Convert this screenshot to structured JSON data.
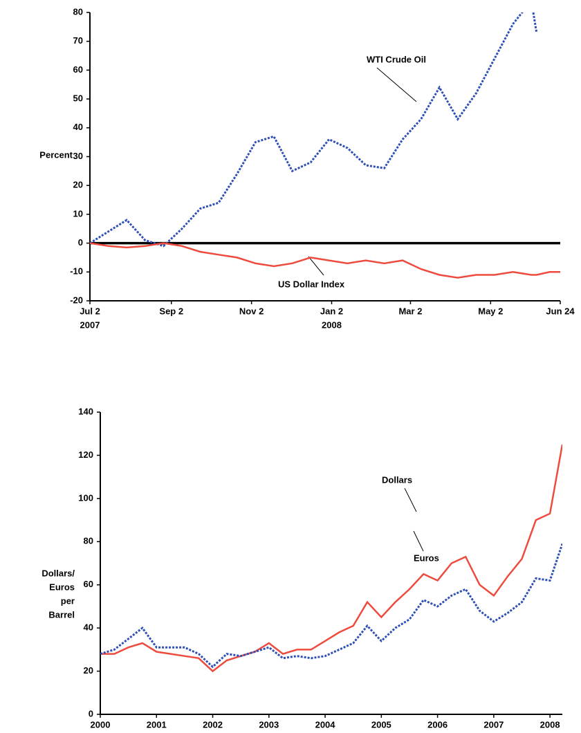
{
  "chart_data": [
    {
      "type": "line",
      "ylabel": [
        "Percent"
      ],
      "x": [
        "2007-07-02",
        "2007-07-16",
        "2007-07-30",
        "2007-08-13",
        "2007-08-27",
        "2007-09-10",
        "2007-09-24",
        "2007-10-08",
        "2007-10-22",
        "2007-11-05",
        "2007-11-19",
        "2007-12-03",
        "2007-12-17",
        "2007-12-31",
        "2008-01-14",
        "2008-01-28",
        "2008-02-11",
        "2008-02-25",
        "2008-03-10",
        "2008-03-24",
        "2008-04-07",
        "2008-04-21",
        "2008-05-05",
        "2008-05-19",
        "2008-06-02",
        "2008-06-06",
        "2008-06-16",
        "2008-06-24"
      ],
      "series": [
        {
          "name": "WTI Crude Oil",
          "color": "#2e4fb5",
          "dash": true,
          "values": [
            0,
            4,
            8,
            1,
            -1,
            5,
            12,
            14,
            24,
            35,
            37,
            25,
            28,
            36,
            33,
            27,
            26,
            36,
            43,
            54,
            43,
            52,
            64,
            76,
            84,
            73,
            null,
            null
          ]
        },
        {
          "name": "US Dollar Index",
          "color": "#ee4b3e",
          "dash": false,
          "values": [
            0,
            -1,
            -1.5,
            -1,
            0,
            -1,
            -3,
            -4,
            -5,
            -7,
            -8,
            -7,
            -5,
            -6,
            -7,
            -6,
            -7,
            -6,
            -9,
            -11,
            -12,
            -11,
            -11,
            -10,
            -11,
            -11,
            -10,
            -10
          ]
        }
      ],
      "xlim": [
        "2007-07-02",
        "2008-06-24"
      ],
      "xticks": [
        {
          "value": "2007-07-02",
          "label": "Jul 2"
        },
        {
          "value": "2007-09-02",
          "label": "Sep 2"
        },
        {
          "value": "2007-11-02",
          "label": "Nov 2"
        },
        {
          "value": "2008-01-02",
          "label": "Jan 2"
        },
        {
          "value": "2008-03-02",
          "label": "Mar 2"
        },
        {
          "value": "2008-05-02",
          "label": "May 2"
        },
        {
          "value": "2008-06-24",
          "label": "Jun 24"
        }
      ],
      "year_labels": [
        {
          "value": "2007-07-02",
          "label": "2007"
        },
        {
          "value": "2008-01-02",
          "label": "2008"
        }
      ],
      "ylim": [
        -20,
        80
      ],
      "yticks": [
        -20,
        -10,
        0,
        10,
        20,
        30,
        40,
        50,
        60,
        70,
        80
      ],
      "zero_line": true
    },
    {
      "type": "line",
      "ylabel": [
        "Dollars/",
        "Euros",
        "per",
        "Barrel"
      ],
      "x": [
        2000,
        2000.25,
        2000.5,
        2000.75,
        2001,
        2001.25,
        2001.5,
        2001.75,
        2002,
        2002.25,
        2002.5,
        2002.75,
        2003,
        2003.25,
        2003.5,
        2003.75,
        2004,
        2004.25,
        2004.5,
        2004.75,
        2005,
        2005.25,
        2005.5,
        2005.75,
        2006,
        2006.25,
        2006.5,
        2006.75,
        2007,
        2007.25,
        2007.5,
        2007.75,
        2008,
        2008.22
      ],
      "series": [
        {
          "name": "Dollars",
          "color": "#ee4b3e",
          "dash": false,
          "values": [
            28,
            28,
            31,
            33,
            29,
            28,
            27,
            26,
            20,
            25,
            27,
            29,
            33,
            28,
            30,
            30,
            34,
            38,
            41,
            52,
            45,
            52,
            58,
            65,
            62,
            70,
            73,
            60,
            55,
            64,
            72,
            90,
            93,
            125
          ]
        },
        {
          "name": "Euros",
          "color": "#2e4fb5",
          "dash": true,
          "values": [
            28,
            30,
            35,
            40,
            31,
            31,
            31,
            28,
            22,
            28,
            27,
            29,
            31,
            26,
            27,
            26,
            27,
            30,
            33,
            41,
            34,
            40,
            44,
            53,
            50,
            55,
            58,
            48,
            43,
            47,
            52,
            63,
            62,
            79
          ]
        }
      ],
      "xlim": [
        2000,
        2008.22
      ],
      "xticks": [
        2000,
        2001,
        2002,
        2003,
        2004,
        2005,
        2006,
        2007,
        2008
      ],
      "ylim": [
        0,
        140
      ],
      "yticks": [
        0,
        20,
        40,
        60,
        80,
        100,
        120,
        140
      ],
      "zero_line": false
    }
  ]
}
